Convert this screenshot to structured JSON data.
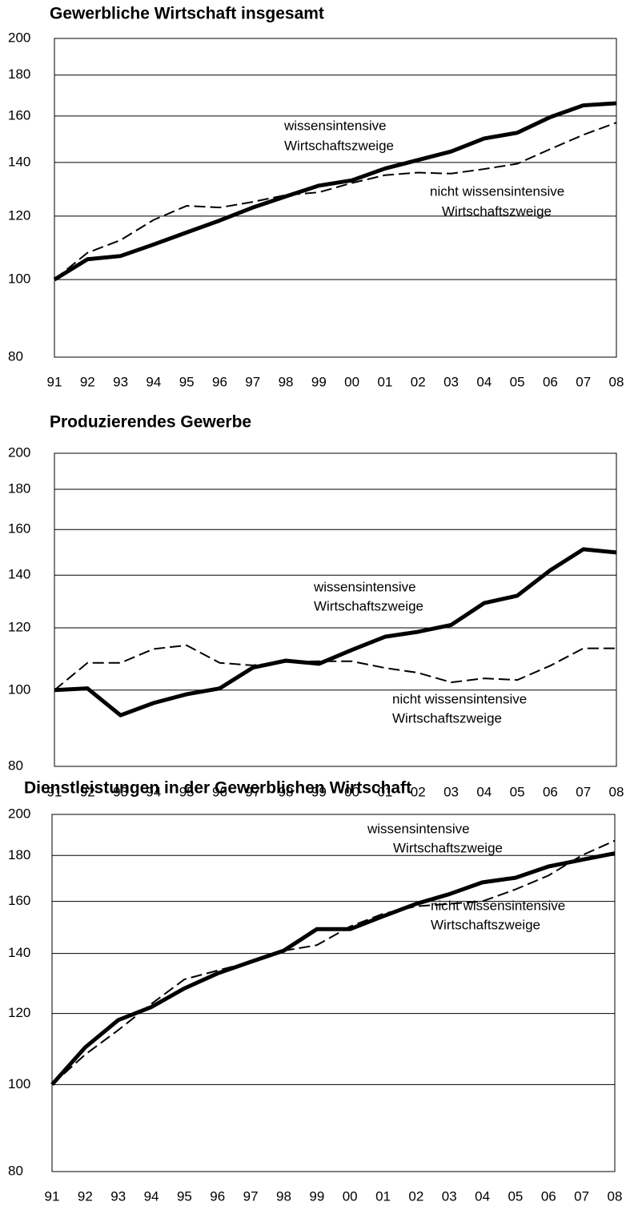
{
  "chart_data": [
    {
      "type": "line",
      "title": "Gewerbliche Wirtschaft insgesamt",
      "categories": [
        "91",
        "92",
        "93",
        "94",
        "95",
        "96",
        "97",
        "98",
        "99",
        "00",
        "01",
        "02",
        "03",
        "04",
        "05",
        "06",
        "07",
        "08"
      ],
      "yscale": "log",
      "ylim": [
        80,
        200
      ],
      "yticks": [
        80,
        100,
        120,
        140,
        160,
        180,
        200
      ],
      "grid": true,
      "series": [
        {
          "color": "#000000",
          "line_style": "solid",
          "values": [
            100,
            106,
            107,
            110.6,
            114.5,
            118.5,
            123,
            127,
            131,
            133,
            137.6,
            141,
            144.5,
            150,
            152.5,
            159.5,
            165,
            166
          ]
        },
        {
          "color": "#000000",
          "line_style": "dashed",
          "values": [
            100,
            108,
            112,
            118.7,
            123.6,
            123,
            125,
            127.5,
            128.5,
            132,
            135,
            136,
            135.6,
            137.4,
            139.5,
            145.5,
            151.6,
            157
          ]
        }
      ],
      "annotations": [
        [
          "wissensintensive",
          "Wirtschaftszweige"
        ],
        [
          "nicht wissensintensive",
          "Wirtschaftszweige"
        ]
      ]
    },
    {
      "type": "line",
      "title": "Produzierendes Gewerbe",
      "categories": [
        "91",
        "92",
        "93",
        "94",
        "95",
        "96",
        "97",
        "98",
        "99",
        "00",
        "01",
        "02",
        "03",
        "04",
        "05",
        "06",
        "07",
        "08"
      ],
      "yscale": "log",
      "ylim": [
        80,
        200
      ],
      "yticks": [
        80,
        100,
        120,
        140,
        160,
        180,
        200
      ],
      "grid": true,
      "series": [
        {
          "color": "#000000",
          "line_style": "solid",
          "values": [
            100,
            100.5,
            92.9,
            96.3,
            98.8,
            100.5,
            106.8,
            109,
            108,
            112.5,
            116.9,
            118.6,
            121,
            129,
            131.8,
            142,
            151,
            149.6
          ]
        },
        {
          "color": "#000000",
          "line_style": "dashed",
          "values": [
            100,
            108.3,
            108.3,
            112.8,
            114,
            108.3,
            107.5,
            108.6,
            108.8,
            108.8,
            106.7,
            105.2,
            102.3,
            103.5,
            103,
            107.4,
            113,
            113
          ]
        }
      ],
      "annotations": [
        [
          "wissensintensive",
          "Wirtschaftszweige"
        ],
        [
          "nicht wissensintensive",
          "Wirtschaftszweige"
        ]
      ]
    },
    {
      "type": "line",
      "title": "Dienstleistungen in der Gewerblichen Wirtschaft",
      "categories": [
        "91",
        "92",
        "93",
        "94",
        "95",
        "96",
        "97",
        "98",
        "99",
        "00",
        "01",
        "02",
        "03",
        "04",
        "05",
        "06",
        "07",
        "08"
      ],
      "yscale": "log",
      "ylim": [
        80,
        200
      ],
      "yticks": [
        80,
        100,
        120,
        140,
        160,
        180,
        200
      ],
      "grid": true,
      "series": [
        {
          "color": "#000000",
          "line_style": "solid",
          "values": [
            100,
            110,
            118,
            122,
            128,
            133,
            137,
            141,
            149,
            149,
            154,
            159,
            163,
            168,
            170,
            175,
            178,
            181
          ]
        },
        {
          "color": "#000000",
          "line_style": "dashed",
          "values": [
            100,
            108,
            115,
            123,
            131,
            134,
            137,
            141,
            143,
            150,
            155,
            158,
            159,
            160,
            165,
            171,
            180,
            187
          ]
        }
      ],
      "annotations": [
        [
          "wissensintensive",
          "Wirtschaftszweige"
        ],
        [
          "nicht wissensintensive",
          "Wirtschaftszweige"
        ]
      ]
    }
  ]
}
